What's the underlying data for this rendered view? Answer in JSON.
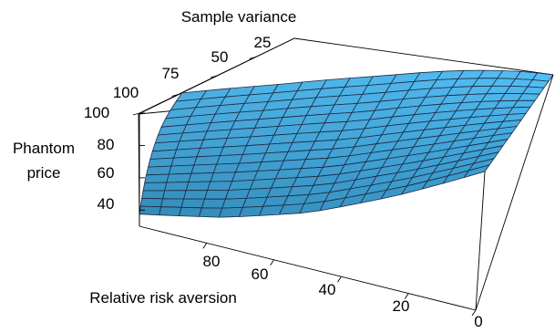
{
  "chart_data": {
    "type": "surface",
    "xlabel": "Relative risk aversion",
    "ylabel": "Sample variance",
    "zlabel_line1": "Phantom",
    "zlabel_line2": "price",
    "x_ticks": [
      "0",
      "20",
      "40",
      "60",
      "80"
    ],
    "y_ticks": [
      "25",
      "50",
      "75",
      "100"
    ],
    "z_ticks": [
      "100",
      "80",
      "60",
      "40"
    ],
    "xlim": [
      0,
      100
    ],
    "ylim": [
      0,
      100
    ],
    "zlim": [
      30,
      100
    ],
    "grid_size": [
      17,
      15
    ],
    "surface_color": "#3fa9df",
    "mesh_color": "#1f2a44",
    "x_values": [
      0,
      25,
      50,
      75,
      100
    ],
    "y_values": [
      0,
      25,
      50,
      75,
      100
    ],
    "z_values": [
      [
        100,
        100,
        100,
        100,
        100
      ],
      [
        83,
        81.5,
        80.5,
        80,
        79.5
      ],
      [
        64.5,
        63,
        62,
        61.5,
        61
      ],
      [
        55,
        52.5,
        50.5,
        49,
        47.5
      ],
      [
        49.5,
        44,
        41,
        39,
        37.5
      ]
    ]
  }
}
